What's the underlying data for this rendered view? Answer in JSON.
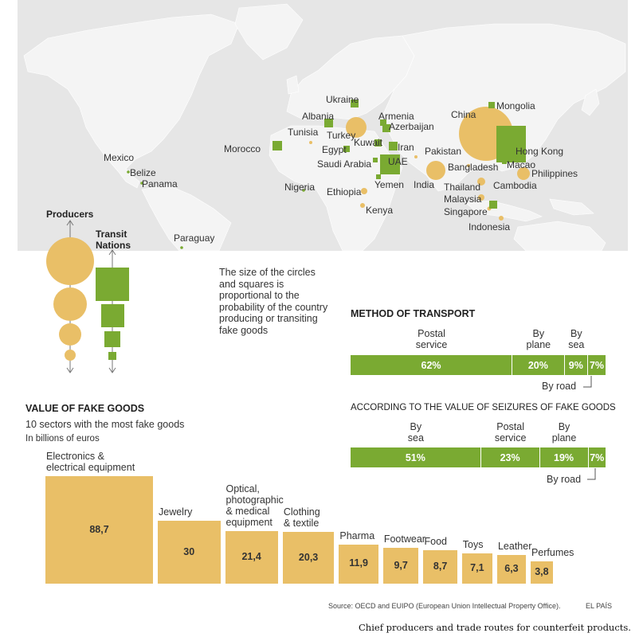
{
  "map": {
    "countries": [
      {
        "name": "Ukraine"
      },
      {
        "name": "Albania"
      },
      {
        "name": "Armenia"
      },
      {
        "name": "Azerbaijan"
      },
      {
        "name": "Mongolia"
      },
      {
        "name": "China"
      },
      {
        "name": "Tunisia"
      },
      {
        "name": "Turkey"
      },
      {
        "name": "Kuwait"
      },
      {
        "name": "Iran"
      },
      {
        "name": "Morocco"
      },
      {
        "name": "Egypt"
      },
      {
        "name": "Pakistan"
      },
      {
        "name": "Hong Kong"
      },
      {
        "name": "Mexico"
      },
      {
        "name": "Saudi Arabia"
      },
      {
        "name": "UAE"
      },
      {
        "name": "Bangladesh"
      },
      {
        "name": "Macao"
      },
      {
        "name": "Belize"
      },
      {
        "name": "Philippines"
      },
      {
        "name": "Panama"
      },
      {
        "name": "Nigeria"
      },
      {
        "name": "Yemen"
      },
      {
        "name": "India"
      },
      {
        "name": "Cambodia"
      },
      {
        "name": "Ethiopia"
      },
      {
        "name": "Thailand"
      },
      {
        "name": "Malaysia"
      },
      {
        "name": "Kenya"
      },
      {
        "name": "Singapore"
      },
      {
        "name": "Indonesia"
      },
      {
        "name": "Paraguay"
      }
    ]
  },
  "legend": {
    "producers": "Producers",
    "transit_line1": "Transit",
    "transit_line2": "Nations"
  },
  "note": "The size of the circles and squares is proportional to the probability of the country producing or transiting fake goods",
  "transport": {
    "title": "METHOD OF TRANSPORT",
    "bar1": {
      "labels": [
        "Postal service",
        "By plane",
        "By sea"
      ],
      "values": [
        "62%",
        "20%",
        "9%",
        "7%"
      ],
      "pct": [
        62,
        20,
        9,
        7
      ],
      "road_label": "By road"
    },
    "bar2_title": "ACCORDING TO THE VALUE OF  SEIZURES OF FAKE GOODS",
    "bar2": {
      "labels": [
        "By sea",
        "Postal service",
        "By plane"
      ],
      "values": [
        "51%",
        "23%",
        "19%",
        "7%"
      ],
      "pct": [
        51,
        23,
        19,
        7
      ],
      "road_label": "By road"
    },
    "colors": {
      "bar": "#7aaa32"
    }
  },
  "goods": {
    "title": "VALUE OF FAKE GOODS",
    "subtitle": "10 sectors with the most fake goods",
    "unit": "In billions of euros"
  },
  "chart_data": {
    "type": "bar",
    "title": "VALUE OF FAKE GOODS",
    "subtitle": "10 sectors with the most fake goods",
    "ylabel": "In billions of euros",
    "categories": [
      "Electronics & electrical equipment",
      "Jewelry",
      "Optical, photographic & medical equipment",
      "Clothing & textile",
      "Pharma",
      "Footwear",
      "Food",
      "Toys",
      "Leather",
      "Perfumes"
    ],
    "values": [
      88.7,
      30,
      21.4,
      20.3,
      11.9,
      9.7,
      8.7,
      7.1,
      6.3,
      3.8
    ],
    "display_values": [
      "88,7",
      "30",
      "21,4",
      "20,3",
      "11,9",
      "9,7",
      "8,7",
      "7,1",
      "6,3",
      "3,8"
    ],
    "color": "#e9bf67"
  },
  "source": "Source: OECD and EUIPO (European Union Intellectual Property Office).",
  "brand": "EL PAÍS",
  "caption": "Chief producers and trade routes for counterfeit products."
}
